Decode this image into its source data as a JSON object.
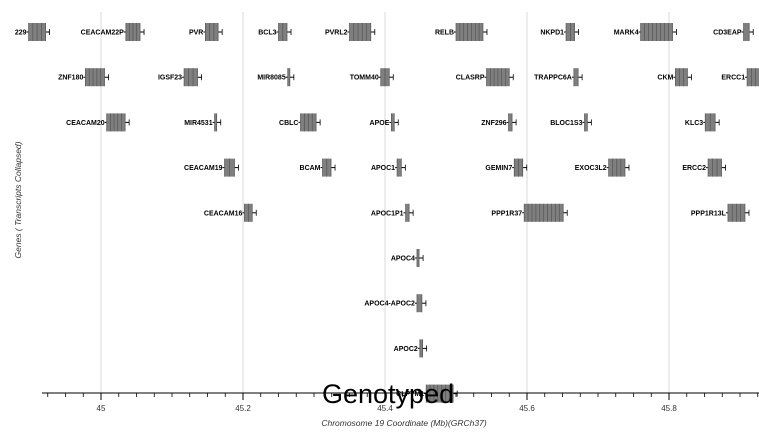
{
  "chart_data": {
    "type": "gene-track",
    "xlabel": "Chromosome 19 Coordinate (Mb)(GRCh37)",
    "ylabel": "Genes ( Transcripts Collapsed)",
    "xlim": [
      44.88,
      45.93
    ],
    "xticks": [
      45.0,
      45.2,
      45.4,
      45.6,
      45.8
    ],
    "xtick_labels": [
      "45",
      "45.2",
      "45.4",
      "45.6",
      "45.8"
    ],
    "grid": true,
    "genes": [
      {
        "name": "229",
        "row": 0,
        "start": 44.898,
        "end": 44.922
      },
      {
        "name": "CEACAM22P",
        "row": 0,
        "start": 45.035,
        "end": 45.055
      },
      {
        "name": "PVR",
        "row": 0,
        "start": 45.147,
        "end": 45.165
      },
      {
        "name": "BCL3",
        "row": 0,
        "start": 45.25,
        "end": 45.262
      },
      {
        "name": "PVRL2",
        "row": 0,
        "start": 45.35,
        "end": 45.38
      },
      {
        "name": "RELB",
        "row": 0,
        "start": 45.5,
        "end": 45.538
      },
      {
        "name": "NKPD1",
        "row": 0,
        "start": 45.655,
        "end": 45.667
      },
      {
        "name": "MARK4",
        "row": 0,
        "start": 45.76,
        "end": 45.805
      },
      {
        "name": "CD3EAP",
        "row": 0,
        "start": 45.905,
        "end": 45.913
      },
      {
        "name": "ZNF180",
        "row": 1,
        "start": 44.978,
        "end": 45.005
      },
      {
        "name": "IGSF23",
        "row": 1,
        "start": 45.117,
        "end": 45.136
      },
      {
        "name": "MIR8085",
        "row": 1,
        "start": 45.263,
        "end": 45.266
      },
      {
        "name": "TOMM40",
        "row": 1,
        "start": 45.394,
        "end": 45.406
      },
      {
        "name": "CLASRP",
        "row": 1,
        "start": 45.543,
        "end": 45.575
      },
      {
        "name": "TRAPPC6A",
        "row": 1,
        "start": 45.666,
        "end": 45.672
      },
      {
        "name": "CKM",
        "row": 1,
        "start": 45.809,
        "end": 45.826
      },
      {
        "name": "ERCC1",
        "row": 1,
        "start": 45.91,
        "end": 45.928
      },
      {
        "name": "CEACAM20",
        "row": 2,
        "start": 45.008,
        "end": 45.034
      },
      {
        "name": "MIR4531",
        "row": 2,
        "start": 45.16,
        "end": 45.163
      },
      {
        "name": "CBLC",
        "row": 2,
        "start": 45.281,
        "end": 45.303
      },
      {
        "name": "APOE",
        "row": 2,
        "start": 45.409,
        "end": 45.413
      },
      {
        "name": "ZNF296",
        "row": 2,
        "start": 45.574,
        "end": 45.579
      },
      {
        "name": "BLOC1S3",
        "row": 2,
        "start": 45.681,
        "end": 45.685
      },
      {
        "name": "KLC3",
        "row": 2,
        "start": 45.851,
        "end": 45.865
      },
      {
        "name": "CEACAM19",
        "row": 3,
        "start": 45.174,
        "end": 45.188
      },
      {
        "name": "BCAM",
        "row": 3,
        "start": 45.312,
        "end": 45.324
      },
      {
        "name": "APOC1",
        "row": 3,
        "start": 45.417,
        "end": 45.423
      },
      {
        "name": "GEMIN7",
        "row": 3,
        "start": 45.582,
        "end": 45.594
      },
      {
        "name": "EXOC3L2",
        "row": 3,
        "start": 45.715,
        "end": 45.738
      },
      {
        "name": "ERCC2",
        "row": 3,
        "start": 45.855,
        "end": 45.874
      },
      {
        "name": "CEACAM16",
        "row": 4,
        "start": 45.202,
        "end": 45.213
      },
      {
        "name": "APOC1P1",
        "row": 4,
        "start": 45.429,
        "end": 45.434
      },
      {
        "name": "PPP1R37",
        "row": 4,
        "start": 45.596,
        "end": 45.651
      },
      {
        "name": "PPP1R13L",
        "row": 4,
        "start": 45.883,
        "end": 45.907
      },
      {
        "name": "APOC4",
        "row": 5,
        "start": 45.445,
        "end": 45.448
      },
      {
        "name": "APOC4-APOC2",
        "row": 6,
        "start": 45.445,
        "end": 45.452
      },
      {
        "name": "APOC2",
        "row": 7,
        "start": 45.449,
        "end": 45.453
      },
      {
        "name": "CLPTM1",
        "row": 8,
        "start": 45.458,
        "end": 45.496
      }
    ]
  },
  "overlay_text": "Genotyped"
}
